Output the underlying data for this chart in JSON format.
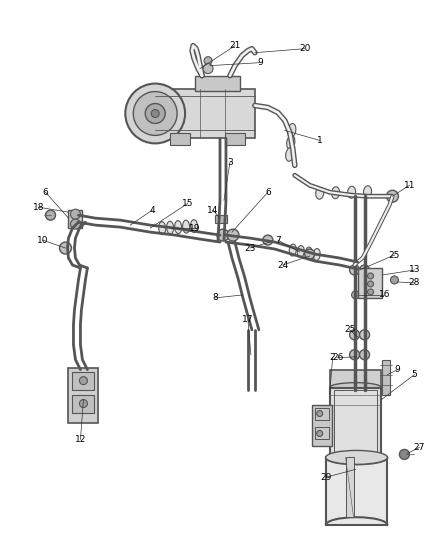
{
  "bg_color": "#ffffff",
  "line_color": "#555555",
  "dark_line": "#333333",
  "label_color": "#000000",
  "label_fontsize": 6.5,
  "fig_width": 4.38,
  "fig_height": 5.33,
  "dpi": 100
}
